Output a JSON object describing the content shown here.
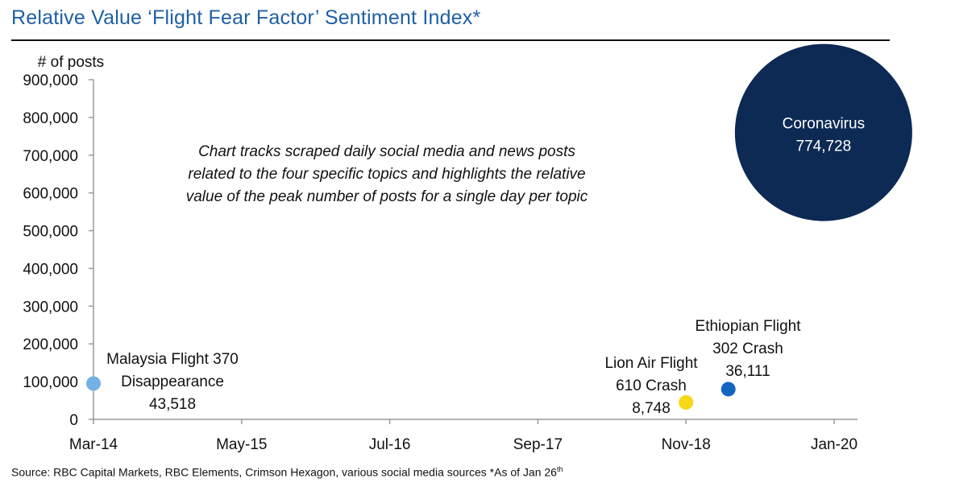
{
  "title": "Relative Value ‘Flight Fear Factor’ Sentiment Index*",
  "source": {
    "text": "Source: RBC Capital Markets, RBC Elements, Crimson Hexagon, various social media sources *As of Jan 26",
    "sup": "th"
  },
  "colors": {
    "title": "#1f5fa6",
    "axis": "#9a9a9a"
  },
  "chart_data": {
    "type": "scatter",
    "subtype": "bubble",
    "ylabel": "# of posts",
    "ylim": [
      0,
      900000
    ],
    "yticks": [
      "900,000",
      "800,000",
      "700,000",
      "600,000",
      "500,000",
      "400,000",
      "300,000",
      "200,000",
      "100,000",
      "0"
    ],
    "xticks": [
      "Mar-14",
      "May-15",
      "Jul-16",
      "Sep-17",
      "Nov-18",
      "Jan-20"
    ],
    "annotation": [
      "Chart tracks scraped daily social media and news posts",
      "related to the four specific topics and highlights the relative",
      "value of the peak number of posts for a single day per topic"
    ],
    "points": [
      {
        "x": "Mar-14",
        "y": 95000,
        "value": 43518,
        "label_lines": [
          "Malaysia Flight 370",
          "Disappearance",
          "43,518"
        ],
        "color": "#74b1e4",
        "label_inside": false
      },
      {
        "x": "Nov-18",
        "y": 45000,
        "value": 8748,
        "label_lines": [
          "Lion Air Flight",
          "610 Crash",
          "8,748"
        ],
        "color": "#f7d716",
        "label_inside": false
      },
      {
        "x": "Mar-19",
        "y": 80000,
        "value": 36111,
        "label_lines": [
          "Ethiopian Flight",
          "302 Crash",
          "36,111"
        ],
        "color": "#1565c0",
        "label_inside": false
      },
      {
        "x": "Dec-19",
        "y": 760000,
        "value": 774728,
        "label_lines": [
          "Coronavirus",
          "774,728"
        ],
        "color": "#0d2a55",
        "label_inside": true
      }
    ]
  }
}
